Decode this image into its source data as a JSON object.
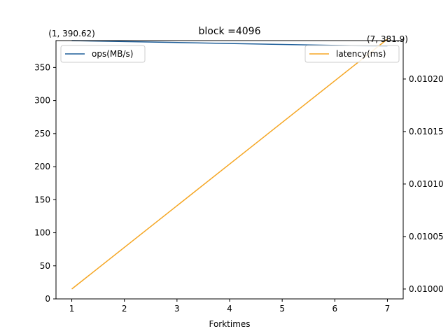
{
  "chart_data": {
    "type": "line",
    "title": "block =4096",
    "xlabel": "Forktimes",
    "ylabel_left": "",
    "ylabel_right": "",
    "x": [
      1,
      7
    ],
    "xlim": [
      0.7,
      7.3
    ],
    "xticks": [
      1,
      2,
      3,
      4,
      5,
      6,
      7
    ],
    "ylim_left": [
      0,
      390.62
    ],
    "yticks_left": [
      0,
      50,
      100,
      150,
      200,
      250,
      300,
      350
    ],
    "ylim_right": [
      0.0099906,
      0.0102366
    ],
    "yticks_right": [
      "0.01000",
      "0.01005",
      "0.01010",
      "0.01015",
      "0.01020"
    ],
    "yticks_right_values": [
      0.01,
      0.01005,
      0.0101,
      0.01015,
      0.0102
    ],
    "grid": false,
    "series": [
      {
        "name": "ops(MB/s)",
        "axis": "left",
        "color": "#1f5f9a",
        "values": [
          390.62,
          381.9
        ]
      },
      {
        "name": "latency(ms)",
        "axis": "right",
        "color": "#f5a623",
        "values": [
          0.01,
          0.010238
        ]
      }
    ],
    "legends": [
      {
        "placement": "upper-left",
        "entries": [
          "ops(MB/s)"
        ]
      },
      {
        "placement": "upper-right",
        "entries": [
          "latency(ms)"
        ]
      }
    ],
    "annotations": [
      {
        "text": "(1, 390.62)",
        "x": 1,
        "y": 390.62,
        "axis": "left"
      },
      {
        "text": "(7, 381.9)",
        "x": 7,
        "y": 381.9,
        "axis": "left"
      }
    ]
  }
}
